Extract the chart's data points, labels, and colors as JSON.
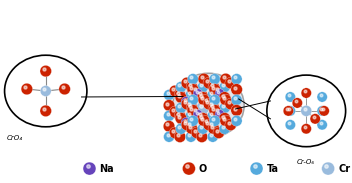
{
  "C_Na": "#6644bb",
  "C_O": "#cc2200",
  "C_Ta": "#55aadd",
  "C_Cr": "#99bbdd",
  "C_bond": "#888888",
  "label_CrO4": "CrO₄",
  "label_CrO6": "Cr-O₆",
  "bg_color": "#ffffff",
  "fig_width": 3.52,
  "fig_height": 1.83,
  "dpi": 100,
  "legend": [
    {
      "label": "Na",
      "color": "#6644bb"
    },
    {
      "label": "O",
      "color": "#cc2200"
    },
    {
      "label": "Ta",
      "color": "#55aadd"
    },
    {
      "label": "Cr",
      "color": "#99bbdd"
    }
  ]
}
